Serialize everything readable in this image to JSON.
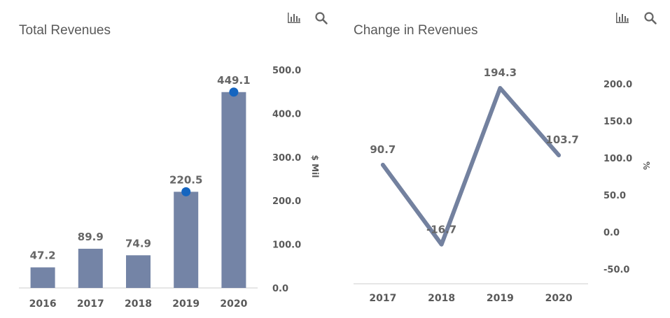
{
  "colors": {
    "bar": "#7484a6",
    "line": "#73819f",
    "marker": "#1565c0",
    "axis": "#cccccc",
    "text": "#595959",
    "label": "#666666",
    "icon": "#666666"
  },
  "toolbar": {
    "icons": [
      "bar-chart-icon",
      "search-icon"
    ]
  },
  "chart_data": [
    {
      "type": "bar",
      "title": "Total Revenues",
      "categories": [
        "2016",
        "2017",
        "2018",
        "2019",
        "2020"
      ],
      "values": [
        47.2,
        89.9,
        74.9,
        220.5,
        449.1
      ],
      "data_labels": [
        "47.2",
        "89.9",
        "74.9",
        "220.5",
        "449.1"
      ],
      "markers": [
        {
          "category": "2019",
          "value": 220.5
        },
        {
          "category": "2020",
          "value": 449.1
        }
      ],
      "ylabel": "$ Mil",
      "y_axis_position": "right",
      "ylim": [
        0,
        500
      ],
      "yticks": [
        0,
        100,
        200,
        300,
        400,
        500
      ],
      "ytick_labels": [
        "0.0",
        "100.0",
        "200.0",
        "300.0",
        "400.0",
        "500.0"
      ],
      "grid": false,
      "legend": "none"
    },
    {
      "type": "line",
      "title": "Change in Revenues",
      "categories": [
        "2017",
        "2018",
        "2019",
        "2020"
      ],
      "values": [
        90.7,
        -16.7,
        194.3,
        103.7
      ],
      "data_labels": [
        "90.7",
        "-16.7",
        "194.3",
        "103.7"
      ],
      "ylabel": "%",
      "y_axis_position": "right",
      "ylim": [
        -50,
        200
      ],
      "yticks": [
        -50,
        0,
        50,
        100,
        150,
        200
      ],
      "ytick_labels": [
        "-50.0",
        "0.0",
        "50.0",
        "100.0",
        "150.0",
        "200.0"
      ],
      "grid": false,
      "legend": "none"
    }
  ]
}
